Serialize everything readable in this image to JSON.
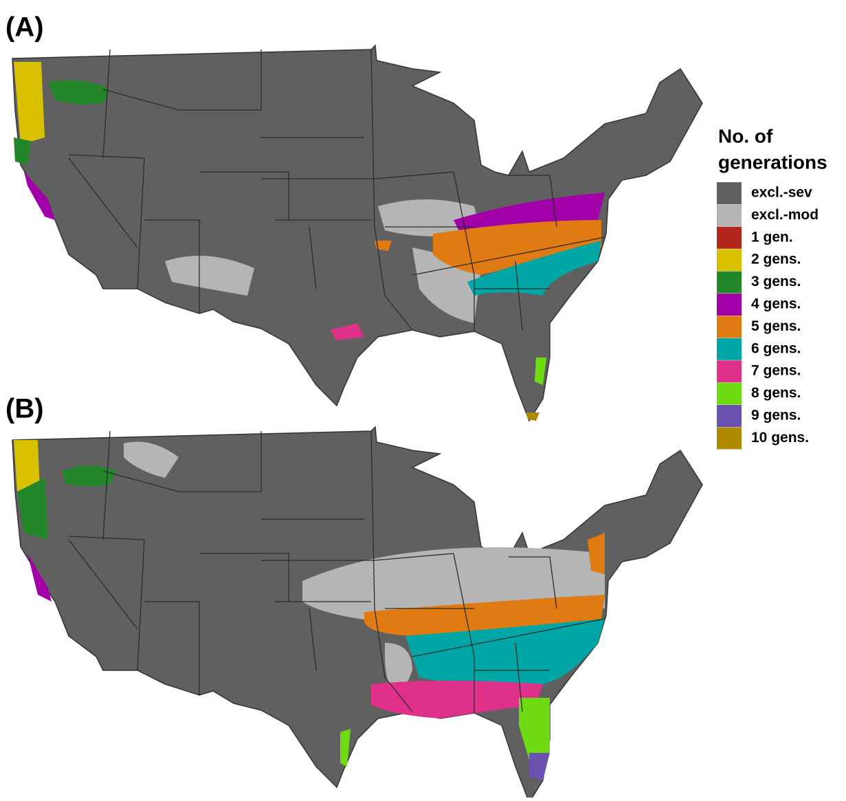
{
  "panels": [
    {
      "label": "(A)"
    },
    {
      "label": "(B)"
    }
  ],
  "legend": {
    "title_lines": [
      "No. of",
      "generations"
    ],
    "items": [
      {
        "label": "excl.-sev",
        "color": "#606060"
      },
      {
        "label": "excl.-mod",
        "color": "#b5b5b5"
      },
      {
        "label": "1 gen.",
        "color": "#b3261c"
      },
      {
        "label": "2 gens.",
        "color": "#d9c000"
      },
      {
        "label": "3 gens.",
        "color": "#238629"
      },
      {
        "label": "4 gens.",
        "color": "#a100a8"
      },
      {
        "label": "5 gens.",
        "color": "#e07a12"
      },
      {
        "label": "6 gens.",
        "color": "#00a6a6"
      },
      {
        "label": "7 gens.",
        "color": "#e0318a"
      },
      {
        "label": "8 gens.",
        "color": "#6fdb12"
      },
      {
        "label": "9 gens.",
        "color": "#6b52b0"
      },
      {
        "label": "10 gens.",
        "color": "#b08a00"
      }
    ]
  }
}
